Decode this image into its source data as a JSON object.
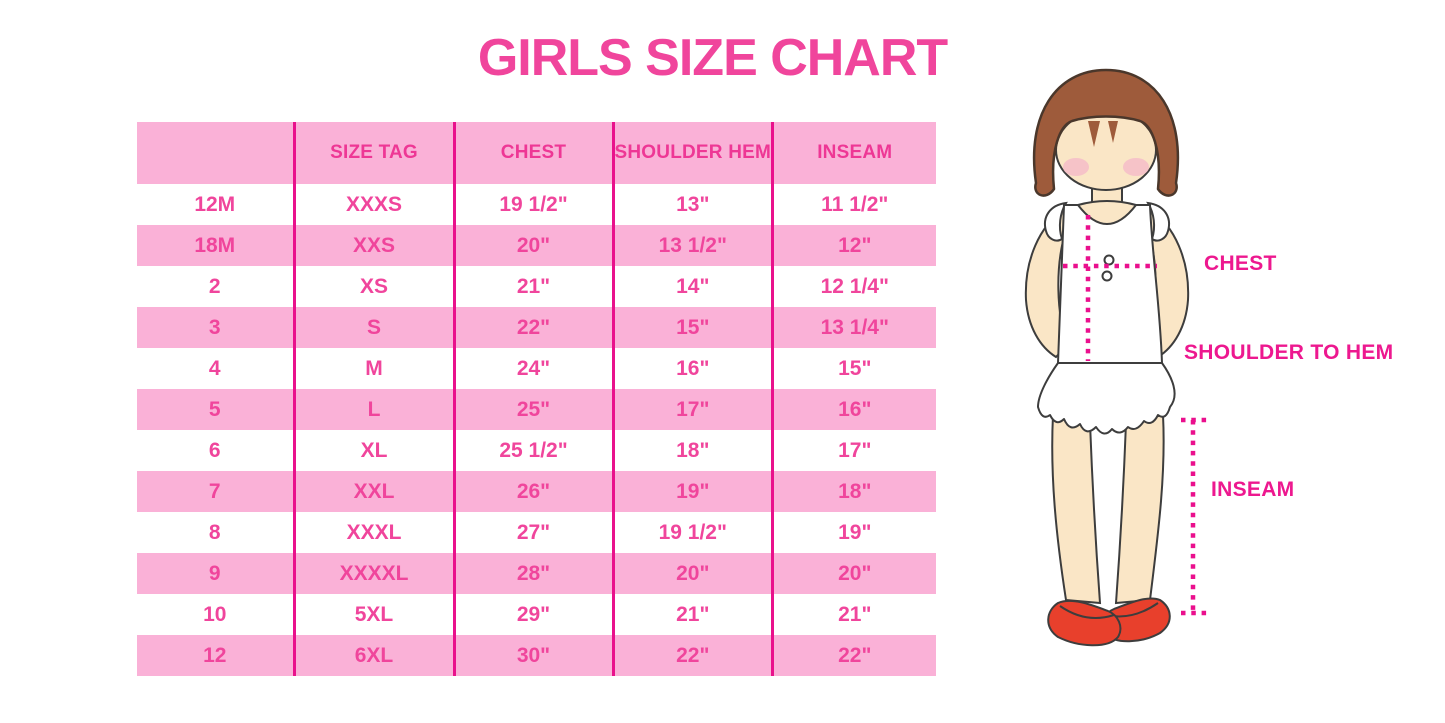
{
  "title": "GIRLS SIZE CHART",
  "chart_data": {
    "type": "table",
    "title": "GIRLS SIZE CHART",
    "columns": [
      "",
      "SIZE TAG",
      "CHEST",
      "SHOULDER HEM",
      "INSEAM"
    ],
    "rows": [
      [
        "12M",
        "XXXS",
        "19 1/2\"",
        "13\"",
        "11 1/2\""
      ],
      [
        "18M",
        "XXS",
        "20\"",
        "13 1/2\"",
        "12\""
      ],
      [
        "2",
        "XS",
        "21\"",
        "14\"",
        "12 1/4\""
      ],
      [
        "3",
        "S",
        "22\"",
        "15\"",
        "13 1/4\""
      ],
      [
        "4",
        "M",
        "24\"",
        "16\"",
        "15\""
      ],
      [
        "5",
        "L",
        "25\"",
        "17\"",
        "16\""
      ],
      [
        "6",
        "XL",
        "25 1/2\"",
        "18\"",
        "17\""
      ],
      [
        "7",
        "XXL",
        "26\"",
        "19\"",
        "18\""
      ],
      [
        "8",
        "XXXL",
        "27\"",
        "19 1/2\"",
        "19\""
      ],
      [
        "9",
        "XXXXL",
        "28\"",
        "20\"",
        "20\""
      ],
      [
        "10",
        "5XL",
        "29\"",
        "21\"",
        "21\""
      ],
      [
        "12",
        "6XL",
        "30\"",
        "22\"",
        "22\""
      ]
    ],
    "layout": {
      "row_striping": "alternating white and pink, first data row white",
      "grid": "vertical magenta column dividers only"
    }
  },
  "figure_labels": {
    "chest": "CHEST",
    "shoulder_to_hem": "SHOULDER TO HEM",
    "inseam": "INSEAM"
  },
  "colors": {
    "title_pink": "#f0459c",
    "row_pink": "#fab1d7",
    "divider_magenta": "#e9118c",
    "measure_line_magenta": "#ea0f8d",
    "label_magenta": "#ed188f",
    "hair_brown": "#9e5b3b",
    "skin": "#fae6c6",
    "blush_pink": "#f4bcc8",
    "shoe_red": "#e8402c"
  }
}
